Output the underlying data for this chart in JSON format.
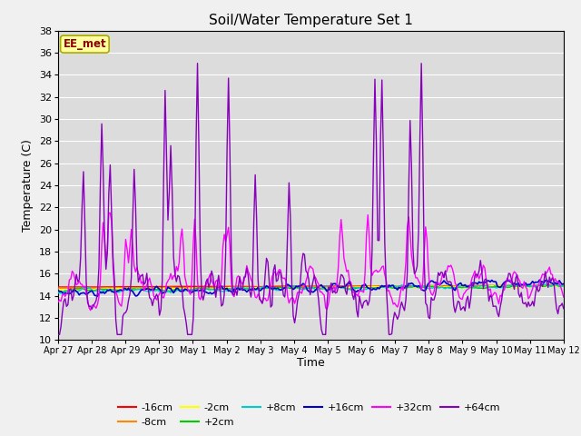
{
  "title": "Soil/Water Temperature Set 1",
  "xlabel": "Time",
  "ylabel": "Temperature (C)",
  "ylim": [
    10,
    38
  ],
  "yticks": [
    10,
    12,
    14,
    16,
    18,
    20,
    22,
    24,
    26,
    28,
    30,
    32,
    34,
    36,
    38
  ],
  "annotation": "EE_met",
  "series_colors": {
    "-16cm": "#ff0000",
    "-8cm": "#ff8800",
    "-2cm": "#ffff00",
    "+2cm": "#00cc00",
    "+8cm": "#00cccc",
    "+16cm": "#0000cc",
    "+32cm": "#ff00ff",
    "+64cm": "#8800bb"
  },
  "x_labels": [
    "Apr 27",
    "Apr 28",
    "Apr 29",
    "Apr 30",
    "May 1",
    "May 2",
    "May 3",
    "May 4",
    "May 5",
    "May 6",
    "May 7",
    "May 8",
    "May 9",
    "May 10",
    "May 11",
    "May 12"
  ],
  "figsize": [
    6.4,
    4.8
  ],
  "dpi": 100
}
